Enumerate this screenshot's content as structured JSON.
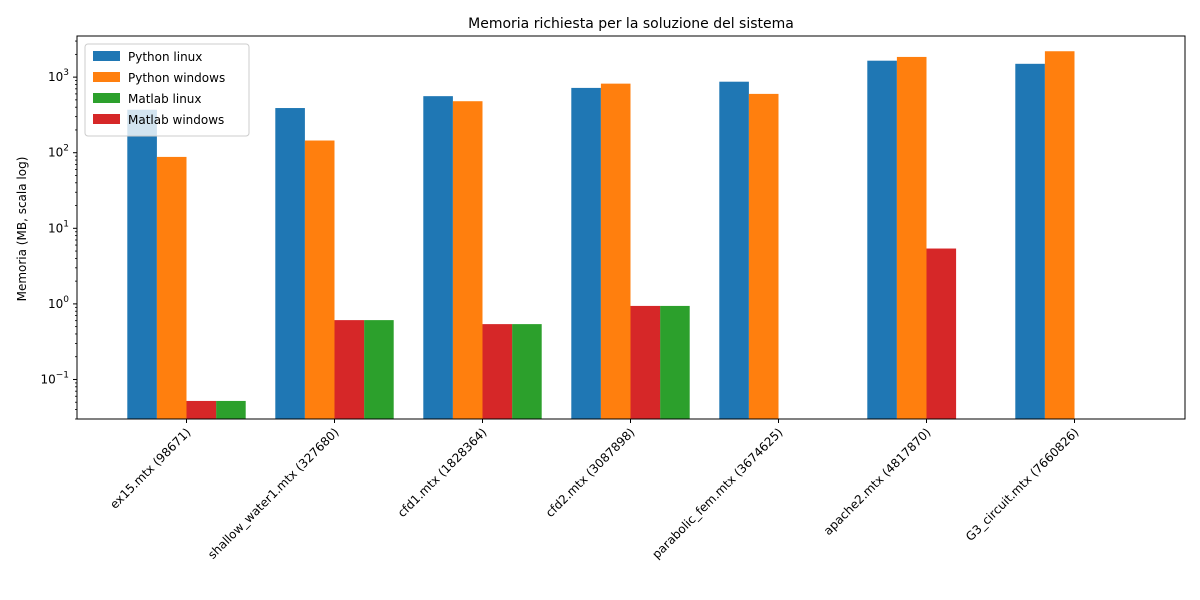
{
  "chart_data": {
    "type": "bar",
    "title": "Memoria richiesta per la soluzione del sistema",
    "xlabel": "",
    "ylabel": "Memoria (MB, scala log)",
    "yscale": "log",
    "ylim": [
      0.03,
      3500
    ],
    "grid": false,
    "legend_position": "top-left",
    "categories": [
      "ex15.mtx (98671)",
      "shallow_water1.mtx (327680)",
      "cfd1.mtx (1828364)",
      "cfd2.mtx (3087898)",
      "parabolic_fem.mtx (3674625)",
      "apache2.mtx (4817870)",
      "G3_circuit.mtx (7660826)"
    ],
    "y_ticks": [
      {
        "value": 0.1,
        "base": "10",
        "exp": "−1"
      },
      {
        "value": 1,
        "base": "10",
        "exp": "0"
      },
      {
        "value": 10,
        "base": "10",
        "exp": "1"
      },
      {
        "value": 100,
        "base": "10",
        "exp": "2"
      },
      {
        "value": 1000,
        "base": "10",
        "exp": "3"
      }
    ],
    "series": [
      {
        "name": "Python linux",
        "color": "#1f77b4",
        "slot": 0,
        "values": [
          370,
          390,
          560,
          720,
          870,
          1650,
          1500
        ]
      },
      {
        "name": "Python windows",
        "color": "#ff7f0e",
        "slot": 1,
        "values": [
          88,
          145,
          480,
          820,
          600,
          1850,
          2200
        ]
      },
      {
        "name": "Matlab linux",
        "color": "#2ca02c",
        "slot": 3,
        "values": [
          0.052,
          0.61,
          0.54,
          0.94,
          null,
          null,
          null
        ]
      },
      {
        "name": "Matlab windows",
        "color": "#d62728",
        "slot": 2,
        "values": [
          0.052,
          0.61,
          0.54,
          0.94,
          null,
          5.4,
          null
        ]
      }
    ]
  }
}
